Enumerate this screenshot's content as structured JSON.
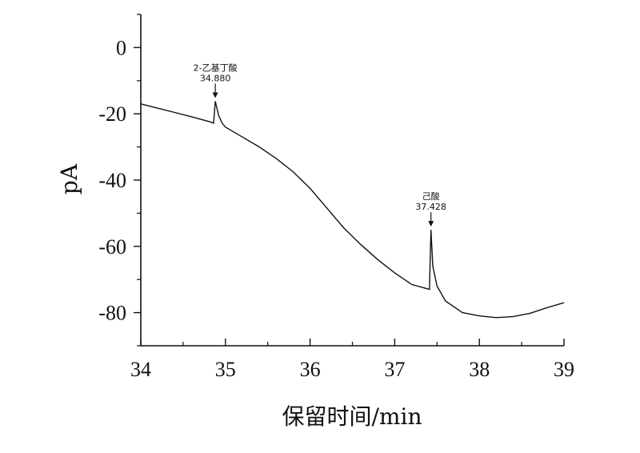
{
  "chart_data": {
    "type": "line",
    "xlabel": "保留时间/min",
    "ylabel": "pA",
    "xlim": [
      34,
      39
    ],
    "ylim": [
      -90,
      10
    ],
    "xticks": [
      34,
      35,
      36,
      37,
      38,
      39
    ],
    "yticks": [
      0,
      -20,
      -40,
      -60,
      -80
    ],
    "grid": false,
    "series": [
      {
        "x": [
          34.0,
          34.2,
          34.4,
          34.6,
          34.8,
          34.86,
          34.88,
          34.92,
          34.96,
          35.0,
          35.2,
          35.4,
          35.6,
          35.8,
          36.0,
          36.2,
          36.4,
          36.6,
          36.8,
          37.0,
          37.2,
          37.41,
          37.428,
          37.45,
          37.5,
          37.6,
          37.8,
          38.0,
          38.2,
          38.4,
          38.6,
          38.8,
          39.0
        ],
        "y": [
          -17,
          -18.3,
          -19.6,
          -20.9,
          -22.3,
          -22.8,
          -16.2,
          -20.5,
          -22.8,
          -24,
          -27,
          -30,
          -33.5,
          -37.5,
          -42.5,
          -48.5,
          -54.5,
          -59.5,
          -64,
          -68,
          -71.5,
          -73,
          -55,
          -66,
          -72,
          -76.5,
          -80,
          -81,
          -81.5,
          -81.2,
          -80.2,
          -78.5,
          -77
        ]
      }
    ],
    "annotations": [
      {
        "name": "2-乙基丁酸",
        "rt": "34.880",
        "x": 34.88,
        "y": -16.2
      },
      {
        "name": "己酸",
        "rt": "37.428",
        "x": 37.428,
        "y": -55
      }
    ]
  }
}
